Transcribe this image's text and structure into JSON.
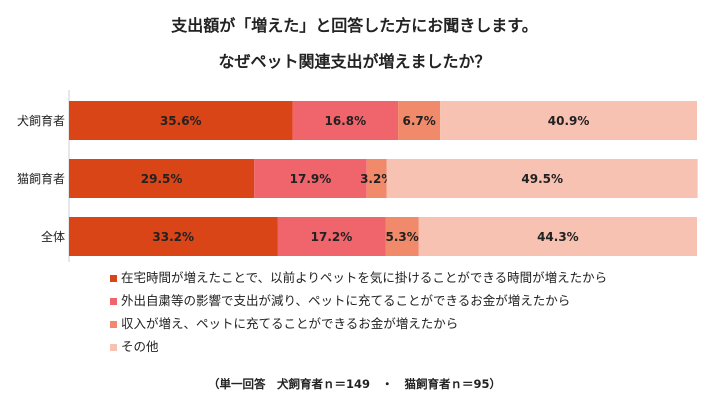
{
  "title_line1": "支出額が「増えた」と回答した方にお聞きします。",
  "title_line2": "なぜペット関連支出が増えましたか？",
  "footnote": "（単一回答　犬飼育者ｎ＝149　・　猫飼育者ｎ＝95）",
  "colors": [
    "#d94516",
    "#f0646c",
    "#f08a6a",
    "#f8c2b2"
  ],
  "chart_data": {
    "type": "bar",
    "orientation": "horizontal",
    "stacked": true,
    "xlim": [
      0,
      100
    ],
    "categories": [
      "犬飼育者",
      "猫飼育者",
      "全体"
    ],
    "series": [
      {
        "name": "在宅時間が増えたことで、以前よりペットを気に掛けることができる時間が増えたから",
        "values": [
          35.6,
          29.5,
          33.2
        ]
      },
      {
        "name": "外出自粛等の影響で支出が減り、ペットに充てることができるお金が増えたから",
        "values": [
          16.8,
          17.9,
          17.2
        ]
      },
      {
        "name": "収入が増え、ペットに充てることができるお金が増えたから",
        "values": [
          6.7,
          3.2,
          5.3
        ]
      },
      {
        "name": "その他",
        "values": [
          40.9,
          49.5,
          44.3
        ]
      }
    ],
    "data_labels": [
      [
        "35.6%",
        "16.8%",
        "6.7%",
        "40.9%"
      ],
      [
        "29.5%",
        "17.9%",
        "3.2%",
        "49.5%"
      ],
      [
        "33.2%",
        "17.2%",
        "5.3%",
        "44.3%"
      ]
    ]
  }
}
